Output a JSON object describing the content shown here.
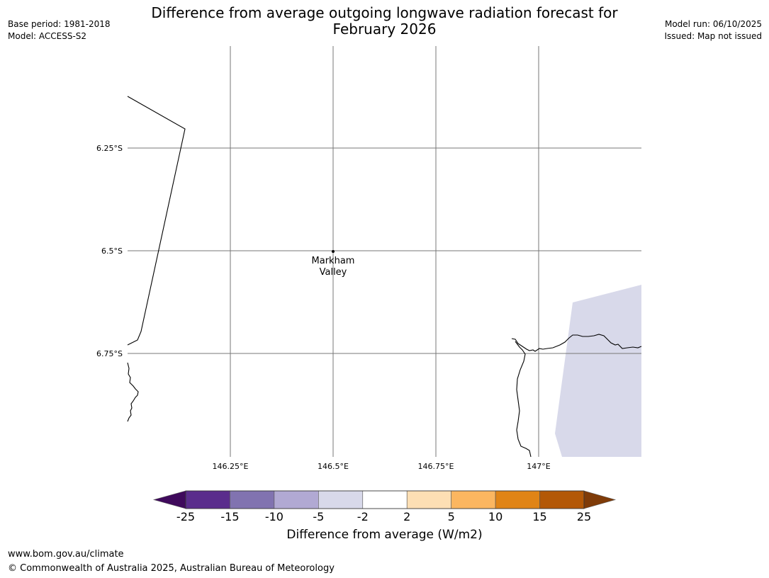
{
  "header": {
    "title_line1": "Difference from average outgoing longwave radiation forecast for",
    "title_line2": "February 2026",
    "base_period": "Base period: 1981-2018",
    "model": "Model: ACCESS-S2",
    "model_run": "Model run: 06/10/2025",
    "issued": "Issued: Map not issued"
  },
  "map": {
    "lat_labels": [
      "6.25°S",
      "6.5°S",
      "6.75°S"
    ],
    "lon_labels": [
      "146.25°E",
      "146.5°E",
      "146.75°E",
      "147°E"
    ],
    "place": {
      "name_line1": "Markham",
      "name_line2": "Valley",
      "lon": 146.5,
      "lat": -6.5
    },
    "extent": {
      "lon_min": 146.0,
      "lon_max": 147.25,
      "lat_min": -7.0,
      "lat_max": -6.0
    },
    "grid": "on",
    "colors": {
      "land_outline": "#000000",
      "gridline": "#777777",
      "anomaly_fill": "#d8d9ea"
    }
  },
  "legend": {
    "title": "Difference from average (W/m2)",
    "tick_labels": [
      "-25",
      "-15",
      "-10",
      "-5",
      "-2",
      "2",
      "5",
      "10",
      "15",
      "25"
    ],
    "bins": [
      {
        "from": "-inf",
        "to": -25,
        "color": "#3f0a5c"
      },
      {
        "from": -25,
        "to": -15,
        "color": "#5a2d8c"
      },
      {
        "from": -15,
        "to": -10,
        "color": "#8173b0"
      },
      {
        "from": -10,
        "to": -5,
        "color": "#b1a9d3"
      },
      {
        "from": -5,
        "to": -2,
        "color": "#d8d9ea"
      },
      {
        "from": -2,
        "to": 2,
        "color": "#ffffff"
      },
      {
        "from": 2,
        "to": 5,
        "color": "#fddfb4"
      },
      {
        "from": 5,
        "to": 10,
        "color": "#fbb660"
      },
      {
        "from": 10,
        "to": 15,
        "color": "#e08416"
      },
      {
        "from": 15,
        "to": 25,
        "color": "#b35807"
      },
      {
        "from": 25,
        "to": "inf",
        "color": "#7f3b08"
      }
    ]
  },
  "footer": {
    "url": "www.bom.gov.au/climate",
    "copyright": "© Commonwealth of Australia 2025, Australian Bureau of Meteorology"
  }
}
